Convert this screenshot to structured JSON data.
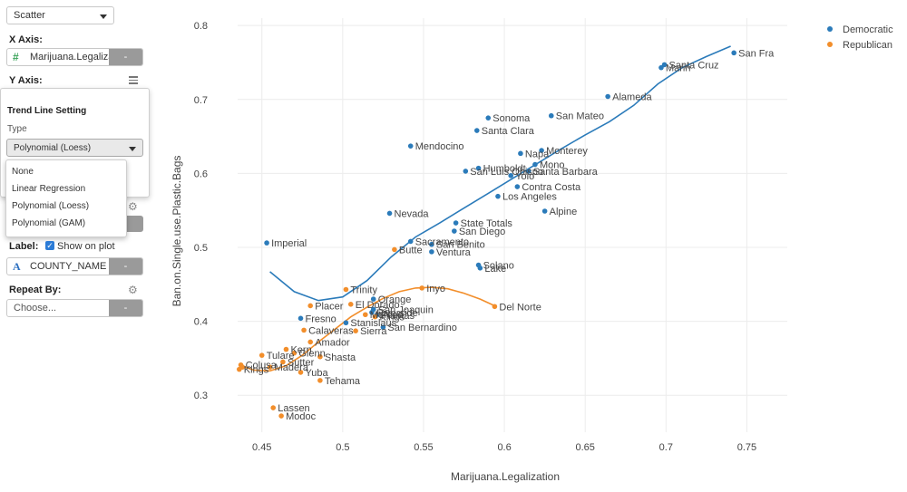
{
  "sidebar": {
    "chart_type": "Scatter",
    "x_axis_label": "X Axis:",
    "x_axis_field": "Marijuana.Legalization",
    "x_axis_icon": "#",
    "y_axis_label": "Y Axis:",
    "trend_title": "Trend Line Setting",
    "type_label": "Type",
    "trend_type": "Polynomial (Loess)",
    "trend_options": [
      "None",
      "Linear Regression",
      "Polynomial (Loess)",
      "Polynomial (GAM)"
    ],
    "close_partial": "se",
    "label_label": "Label:",
    "show_on_plot": "Show on plot",
    "label_field": "COUNTY_NAME",
    "label_icon": "A",
    "repeat_label": "Repeat By:",
    "repeat_placeholder": "Choose...",
    "dash": "-"
  },
  "colors": {
    "Democratic": "#2b7bba",
    "Republican": "#f28e2b"
  },
  "chart_data": {
    "type": "scatter",
    "xlabel": "Marijuana.Legalization",
    "ylabel": "Ban.on.Single.use.Plastic.Bags",
    "xlim": [
      0.435,
      0.775
    ],
    "ylim": [
      0.25,
      0.81
    ],
    "xticks": [
      0.45,
      0.5,
      0.55,
      0.6,
      0.65,
      0.7,
      0.75
    ],
    "yticks": [
      0.3,
      0.4,
      0.5,
      0.6,
      0.7,
      0.8
    ],
    "legend": [
      "Democratic",
      "Republican"
    ],
    "grid": true,
    "series": [
      {
        "name": "Democratic",
        "points": [
          {
            "x": 0.742,
            "y": 0.763,
            "label": "San Fra"
          },
          {
            "x": 0.699,
            "y": 0.747,
            "label": "Santa Cruz"
          },
          {
            "x": 0.697,
            "y": 0.743,
            "label": "Marin"
          },
          {
            "x": 0.664,
            "y": 0.704,
            "label": "Alameda"
          },
          {
            "x": 0.629,
            "y": 0.678,
            "label": "San Mateo"
          },
          {
            "x": 0.59,
            "y": 0.675,
            "label": "Sonoma"
          },
          {
            "x": 0.583,
            "y": 0.658,
            "label": "Santa Clara"
          },
          {
            "x": 0.542,
            "y": 0.637,
            "label": "Mendocino"
          },
          {
            "x": 0.623,
            "y": 0.631,
            "label": "Monterey"
          },
          {
            "x": 0.61,
            "y": 0.627,
            "label": "Napa"
          },
          {
            "x": 0.619,
            "y": 0.612,
            "label": "Mono"
          },
          {
            "x": 0.584,
            "y": 0.607,
            "label": "Humboldt"
          },
          {
            "x": 0.576,
            "y": 0.603,
            "label": "San Luis Obispo"
          },
          {
            "x": 0.615,
            "y": 0.603,
            "label": "Santa Barbara"
          },
          {
            "x": 0.604,
            "y": 0.597,
            "label": "Yolo"
          },
          {
            "x": 0.608,
            "y": 0.582,
            "label": "Contra Costa"
          },
          {
            "x": 0.596,
            "y": 0.569,
            "label": "Los Angeles"
          },
          {
            "x": 0.625,
            "y": 0.549,
            "label": "Alpine"
          },
          {
            "x": 0.529,
            "y": 0.546,
            "label": "Nevada"
          },
          {
            "x": 0.57,
            "y": 0.533,
            "label": "State Totals"
          },
          {
            "x": 0.569,
            "y": 0.522,
            "label": "San Diego"
          },
          {
            "x": 0.453,
            "y": 0.506,
            "label": "Imperial"
          },
          {
            "x": 0.542,
            "y": 0.508,
            "label": "Sacramento"
          },
          {
            "x": 0.555,
            "y": 0.504,
            "label": "San Benito"
          },
          {
            "x": 0.555,
            "y": 0.494,
            "label": "Ventura"
          },
          {
            "x": 0.584,
            "y": 0.476,
            "label": "Solano"
          },
          {
            "x": 0.585,
            "y": 0.472,
            "label": "Lake"
          },
          {
            "x": 0.519,
            "y": 0.43,
            "label": "Orange"
          },
          {
            "x": 0.519,
            "y": 0.416,
            "label": "San Joaquin"
          },
          {
            "x": 0.518,
            "y": 0.412,
            "label": "Riverside"
          },
          {
            "x": 0.521,
            "y": 0.408,
            "label": "Plumas"
          },
          {
            "x": 0.474,
            "y": 0.404,
            "label": "Fresno"
          },
          {
            "x": 0.502,
            "y": 0.398,
            "label": "Stanislaus"
          },
          {
            "x": 0.525,
            "y": 0.392,
            "label": "San Bernardino"
          }
        ]
      },
      {
        "name": "Republican",
        "points": [
          {
            "x": 0.549,
            "y": 0.445,
            "label": "Inyo"
          },
          {
            "x": 0.502,
            "y": 0.443,
            "label": "Trinity"
          },
          {
            "x": 0.594,
            "y": 0.42,
            "label": "Del Norte"
          },
          {
            "x": 0.532,
            "y": 0.497,
            "label": "Butte"
          },
          {
            "x": 0.48,
            "y": 0.421,
            "label": "Placer"
          },
          {
            "x": 0.505,
            "y": 0.423,
            "label": "El Dorado"
          },
          {
            "x": 0.514,
            "y": 0.409,
            "label": "Merced"
          },
          {
            "x": 0.52,
            "y": 0.406,
            "label": "Kings"
          },
          {
            "x": 0.476,
            "y": 0.388,
            "label": "Calaveras"
          },
          {
            "x": 0.508,
            "y": 0.387,
            "label": "Sierra"
          },
          {
            "x": 0.48,
            "y": 0.372,
            "label": "Amador"
          },
          {
            "x": 0.465,
            "y": 0.362,
            "label": "Kern"
          },
          {
            "x": 0.47,
            "y": 0.357,
            "label": "Glenn"
          },
          {
            "x": 0.486,
            "y": 0.352,
            "label": "Shasta"
          },
          {
            "x": 0.45,
            "y": 0.354,
            "label": "Tulare"
          },
          {
            "x": 0.463,
            "y": 0.345,
            "label": "Sutter"
          },
          {
            "x": 0.437,
            "y": 0.341,
            "label": "Colusa"
          },
          {
            "x": 0.438,
            "y": 0.338,
            "label": "Lassen2"
          },
          {
            "x": 0.455,
            "y": 0.338,
            "label": "Madera"
          },
          {
            "x": 0.436,
            "y": 0.335,
            "label": "Kings"
          },
          {
            "x": 0.474,
            "y": 0.331,
            "label": "Yuba"
          },
          {
            "x": 0.486,
            "y": 0.32,
            "label": "Tehama"
          },
          {
            "x": 0.457,
            "y": 0.283,
            "label": "Lassen"
          },
          {
            "x": 0.462,
            "y": 0.272,
            "label": "Modoc"
          }
        ]
      }
    ],
    "trends": [
      {
        "name": "Democratic",
        "points": [
          [
            0.455,
            0.467
          ],
          [
            0.47,
            0.44
          ],
          [
            0.485,
            0.428
          ],
          [
            0.5,
            0.433
          ],
          [
            0.515,
            0.455
          ],
          [
            0.53,
            0.487
          ],
          [
            0.545,
            0.514
          ],
          [
            0.56,
            0.533
          ],
          [
            0.575,
            0.553
          ],
          [
            0.59,
            0.573
          ],
          [
            0.605,
            0.593
          ],
          [
            0.62,
            0.613
          ],
          [
            0.635,
            0.633
          ],
          [
            0.65,
            0.652
          ],
          [
            0.665,
            0.67
          ],
          [
            0.68,
            0.692
          ],
          [
            0.695,
            0.721
          ],
          [
            0.71,
            0.743
          ],
          [
            0.725,
            0.758
          ],
          [
            0.74,
            0.772
          ]
        ]
      },
      {
        "name": "Republican",
        "points": [
          [
            0.437,
            0.34
          ],
          [
            0.445,
            0.334
          ],
          [
            0.455,
            0.333
          ],
          [
            0.465,
            0.34
          ],
          [
            0.475,
            0.354
          ],
          [
            0.485,
            0.372
          ],
          [
            0.495,
            0.389
          ],
          [
            0.505,
            0.406
          ],
          [
            0.515,
            0.419
          ],
          [
            0.525,
            0.431
          ],
          [
            0.535,
            0.44
          ],
          [
            0.545,
            0.445
          ],
          [
            0.555,
            0.446
          ],
          [
            0.565,
            0.444
          ],
          [
            0.575,
            0.438
          ],
          [
            0.585,
            0.43
          ],
          [
            0.594,
            0.421
          ]
        ]
      }
    ]
  }
}
